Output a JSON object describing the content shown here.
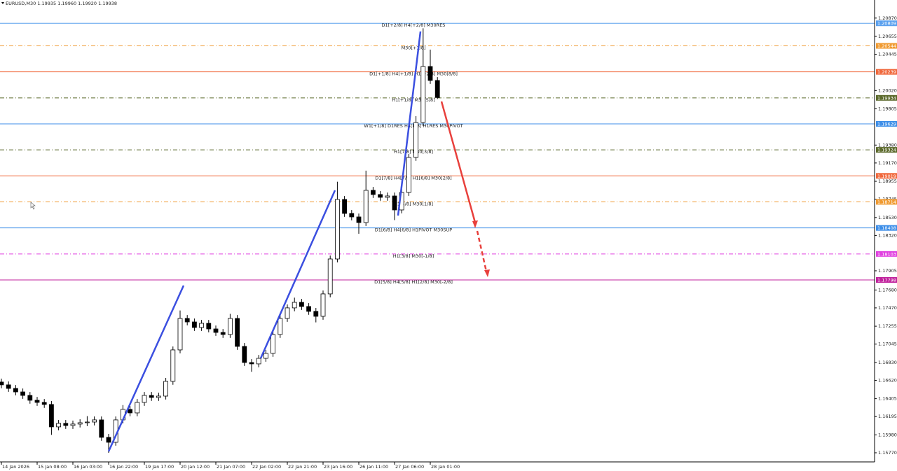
{
  "chart_data": {
    "type": "candlestick",
    "title": "EURUSD,M30  1.19935 1.19960 1.19920 1.19938",
    "categories": [
      "14 Jan 2026",
      null,
      null,
      null,
      null,
      "15 Jan 08:00",
      null,
      null,
      null,
      null,
      "16 Jan 03:00",
      null,
      null,
      null,
      null,
      "16 Jan 22:00",
      null,
      null,
      null,
      null,
      "19 Jan 17:00",
      null,
      null,
      null,
      null,
      "20 Jan 12:00",
      null,
      null,
      null,
      null,
      "21 Jan 07:00",
      null,
      null,
      null,
      null,
      "22 Jan 02:00",
      null,
      null,
      null,
      null,
      "22 Jan 21:00",
      null,
      null,
      null,
      null,
      "23 Jan 16:00",
      null,
      null,
      null,
      null,
      "26 Jan 11:00",
      null,
      null,
      null,
      null,
      "27 Jan 06:00",
      null,
      null,
      null,
      null,
      "28 Jan 01:00",
      null
    ],
    "open": [
      1.166,
      1.16567,
      1.16525,
      1.16484,
      1.16443,
      1.16386,
      1.16361,
      1.16337,
      1.16074,
      1.16115,
      1.1609,
      1.16107,
      1.16123,
      1.16131,
      1.16156,
      1.15951,
      1.15893,
      1.16156,
      1.16279,
      1.16238,
      1.16361,
      1.16443,
      1.16419,
      1.16435,
      1.16608,
      1.16977,
      1.17346,
      1.17305,
      1.1724,
      1.17289,
      1.17223,
      1.17182,
      1.17158,
      1.17346,
      1.17018,
      1.16829,
      1.16813,
      1.16878,
      1.16936,
      1.17158,
      1.17346,
      1.1747,
      1.17535,
      1.17486,
      1.17429,
      1.17371,
      1.17634,
      1.18044,
      1.18742,
      1.18578,
      1.18537,
      1.18471,
      1.18849,
      1.188,
      1.18767,
      1.18783,
      1.18619,
      1.18824,
      1.19235,
      1.19645,
      1.20302,
      1.20138
    ],
    "high": [
      1.1664,
      1.16607,
      1.16565,
      1.16524,
      1.16483,
      1.16426,
      1.16401,
      1.16377,
      1.16155,
      1.16155,
      1.16147,
      1.16163,
      1.162,
      1.16196,
      1.16196,
      1.15991,
      1.16196,
      1.1633,
      1.16319,
      1.16401,
      1.16483,
      1.16483,
      1.16475,
      1.16648,
      1.17017,
      1.1744,
      1.17386,
      1.17345,
      1.17329,
      1.17329,
      1.17263,
      1.17222,
      1.174,
      1.17386,
      1.17058,
      1.16869,
      1.16918,
      1.16976,
      1.17198,
      1.17386,
      1.1751,
      1.1759,
      1.17575,
      1.17526,
      1.17469,
      1.17674,
      1.18084,
      1.1895,
      1.18782,
      1.18618,
      1.18577,
      1.1908,
      1.18889,
      1.1884,
      1.18823,
      1.18823,
      1.18864,
      1.19275,
      1.1972,
      1.2075,
      1.205,
      1.20178
    ],
    "low": [
      1.16527,
      1.16485,
      1.16444,
      1.16403,
      1.16346,
      1.16321,
      1.16297,
      1.1598,
      1.16034,
      1.1605,
      1.1605,
      1.16067,
      1.16083,
      1.16091,
      1.15911,
      1.1577,
      1.15853,
      1.16116,
      1.16198,
      1.16198,
      1.16321,
      1.16379,
      1.16379,
      1.16395,
      1.16568,
      1.16937,
      1.17265,
      1.172,
      1.172,
      1.17183,
      1.17142,
      1.17118,
      1.17118,
      1.16978,
      1.16789,
      1.1672,
      1.16773,
      1.16838,
      1.16896,
      1.17118,
      1.17306,
      1.1743,
      1.17446,
      1.17389,
      1.173,
      1.17331,
      1.17594,
      1.18004,
      1.18538,
      1.18497,
      1.1834,
      1.18431,
      1.1876,
      1.18727,
      1.18727,
      1.185,
      1.18579,
      1.18784,
      1.19195,
      1.19605,
      1.20098,
      1.1992
    ],
    "close": [
      1.16567,
      1.16525,
      1.16484,
      1.16443,
      1.16386,
      1.16361,
      1.16337,
      1.16074,
      1.16115,
      1.1609,
      1.16107,
      1.16123,
      1.16131,
      1.16156,
      1.15951,
      1.15893,
      1.16156,
      1.16279,
      1.16238,
      1.16361,
      1.16443,
      1.16419,
      1.16435,
      1.16608,
      1.16977,
      1.17346,
      1.17305,
      1.1724,
      1.17289,
      1.17223,
      1.17182,
      1.17158,
      1.17346,
      1.17018,
      1.16829,
      1.16813,
      1.16878,
      1.16936,
      1.17158,
      1.17346,
      1.1747,
      1.17535,
      1.17486,
      1.17429,
      1.17371,
      1.17634,
      1.18044,
      1.18742,
      1.18578,
      1.18537,
      1.18471,
      1.18849,
      1.188,
      1.18767,
      1.18783,
      1.18619,
      1.18824,
      1.19235,
      1.19645,
      1.20302,
      1.20138,
      1.19938
    ],
    "up_color": "#ffffff",
    "down_color": "#000000",
    "ylim": [
      1.15663,
      1.21082
    ],
    "yticks": [
      {
        "value": 1.2087,
        "label": "1.20870"
      },
      1.20655,
      1.20445,
      {
        "value": 1.2002,
        "label": "1.20020"
      },
      1.19805,
      {
        "value": 1.1938,
        "label": "1.19380"
      },
      {
        "value": 1.1917,
        "label": "1.19170"
      },
      1.18955,
      1.18745,
      {
        "value": 1.1853,
        "label": "1.18530"
      },
      {
        "value": 1.1832,
        "label": "1.18320"
      },
      1.17905,
      {
        "value": 1.1768,
        "label": "1.17680"
      },
      {
        "value": 1.1747,
        "label": "1.17470"
      },
      1.17255,
      1.17045,
      {
        "value": 1.1683,
        "label": "1.16830"
      },
      {
        "value": 1.1662,
        "label": "1.16620"
      },
      1.16405,
      1.16195,
      {
        "value": 1.1598,
        "label": "1.15980"
      },
      {
        "value": 1.1577,
        "label": "1.15770"
      }
    ],
    "grid": false,
    "levels": [
      {
        "label": "D1[+2/8] H4[+2/8] M30RES",
        "price": 1.20809,
        "color": "#5aa0ee",
        "style": "solid"
      },
      {
        "label": "M30[+1/8]",
        "price": 1.20544,
        "color": "#f09a30",
        "style": "dashdot"
      },
      {
        "label": "D1[+1/8] H4[+1/8] H1[+2/8] M30[8/8]",
        "price": 1.20239,
        "color": "#f0683c",
        "style": "solid"
      },
      {
        "label": "H1[+1/8] M30[5/8]",
        "price": 1.19934,
        "color": "#5c6a2c",
        "style": "dashdot"
      },
      {
        "label": "W1[+1/8] D1RES H4[8/8] H1RES M30PIVOT",
        "price": 1.19629,
        "color": "#3d8ee8",
        "style": "solid"
      },
      {
        "label": "H1[7/8] M30[3/8]",
        "price": 1.19324,
        "color": "#5c6a2c",
        "style": "dashdot"
      },
      {
        "label": "D1[7/8] H4[7/8] H1[6/8] M30[2/8]",
        "price": 1.19019,
        "color": "#f0683c",
        "style": "solid"
      },
      {
        "label": "H1[5/8] M30[1/8]",
        "price": 1.18714,
        "color": "#f09a30",
        "style": "dashdot"
      },
      {
        "label": "D1[6/8] H4[6/8] H1PIVOT M30SUP",
        "price": 1.18408,
        "color": "#3d8ee8",
        "style": "solid"
      },
      {
        "label": "H1[3/8] M30[-1/8]",
        "price": 1.18103,
        "color": "#e040e0",
        "style": "dashdot"
      },
      {
        "label": "D1[5/8] H4[5/8] H1[2/8] M30[-2/8]",
        "price": 1.17798,
        "color": "#c0209c",
        "style": "solid"
      }
    ]
  }
}
